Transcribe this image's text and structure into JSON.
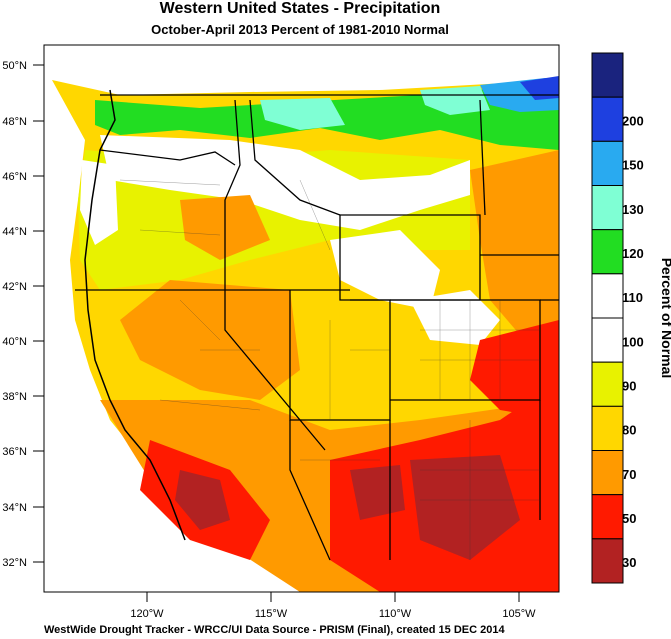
{
  "title": "Western United States - Precipitation",
  "subtitle": "October-April 2013  Percent of 1981-2010 Normal",
  "footer": "WestWide Drought Tracker - WRCC/UI  Data Source - PRISM (Final), created 15 DEC 2014",
  "legend_title": "Percent of Normal",
  "lat_labels": [
    "50°N",
    "48°N",
    "46°N",
    "44°N",
    "42°N",
    "40°N",
    "38°N",
    "36°N",
    "34°N",
    "32°N"
  ],
  "lon_labels": [
    "120°W",
    "115°W",
    "110°W",
    "105°W"
  ],
  "legend": [
    {
      "label": "",
      "color": "#1a237e"
    },
    {
      "label": "200",
      "color": "#1e40e0"
    },
    {
      "label": "150",
      "color": "#29aaf0"
    },
    {
      "label": "130",
      "color": "#7fffd4"
    },
    {
      "label": "120",
      "color": "#22dd22"
    },
    {
      "label": "110",
      "color": "#ffffff"
    },
    {
      "label": "100",
      "color": "#ffffff"
    },
    {
      "label": "90",
      "color": "#e8f200"
    },
    {
      "label": "80",
      "color": "#ffd700"
    },
    {
      "label": "70",
      "color": "#ff9a00"
    },
    {
      "label": "50",
      "color": "#ff1a00"
    },
    {
      "label": "30",
      "color": "#b22222"
    }
  ],
  "colors": {
    "blue_dark": "#1a237e",
    "blue": "#1e40e0",
    "sky": "#29aaf0",
    "aqua": "#7fffd4",
    "green": "#22dd22",
    "white": "#ffffff",
    "yellow": "#e8f200",
    "gold": "#ffd700",
    "orange": "#ff9a00",
    "red": "#ff1a00",
    "brick": "#b22222"
  }
}
